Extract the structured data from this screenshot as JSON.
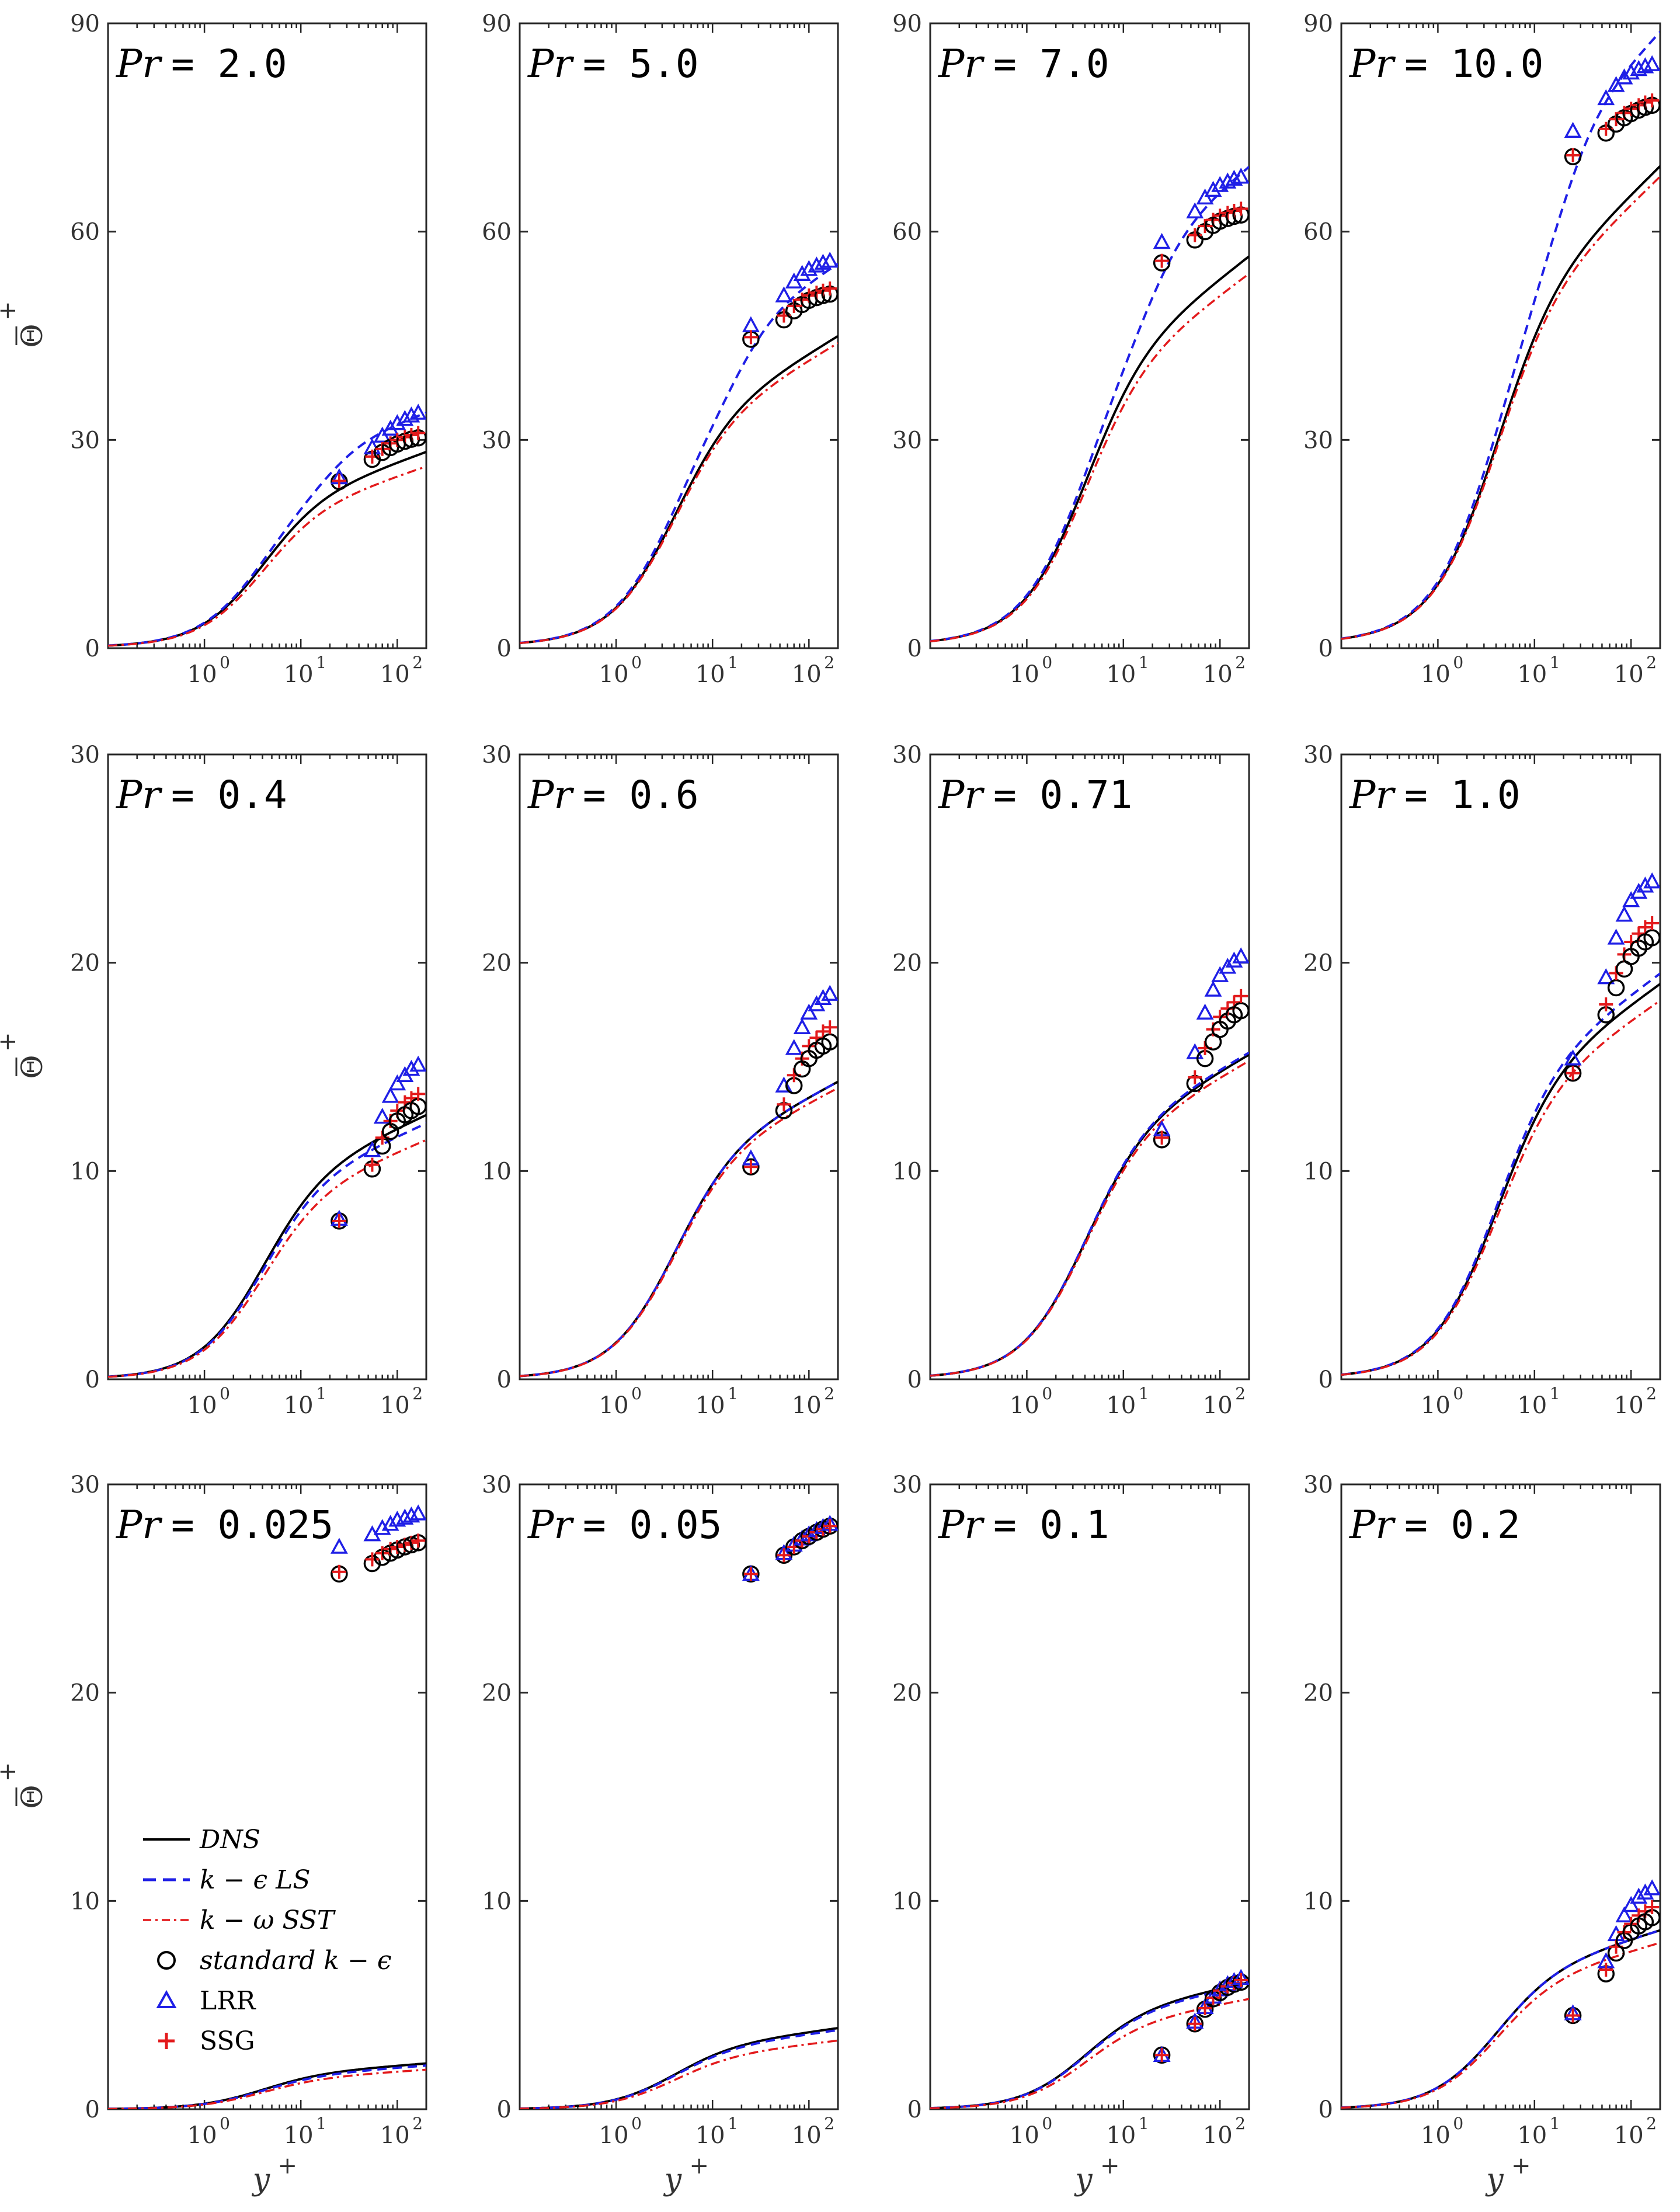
{
  "chart_data": {
    "type": "line",
    "layout": "3x4 grid of subplots",
    "x_scale": "log",
    "xlabel": "y",
    "xlabel_superscript": "+",
    "ylabel": "Θ",
    "ylabel_superscript": "+",
    "xlim": [
      0.1,
      200
    ],
    "x_ticks": [
      {
        "base": "10",
        "exp": "0",
        "value": 1
      },
      {
        "base": "10",
        "exp": "1",
        "value": 10
      },
      {
        "base": "10",
        "exp": "2",
        "value": 100
      }
    ],
    "legend": [
      {
        "label": "DNS",
        "style": "solid",
        "color": "#000000"
      },
      {
        "label": "k − ϵ LS",
        "style": "dashed",
        "color": "#1f1fe6"
      },
      {
        "label": "k − ω SST",
        "style": "dashdot",
        "color": "#e31a1c"
      },
      {
        "label": "standard k − ϵ",
        "style": "circle",
        "color": "#000000"
      },
      {
        "label": "LRR",
        "style": "triangle",
        "color": "#1f1fe6"
      },
      {
        "label": "SSG",
        "style": "plus",
        "color": "#e31a1c"
      }
    ],
    "panels": [
      {
        "title_var": "Pr",
        "title_val": "= 2.0",
        "Pr": 2.0,
        "ylim": [
          0,
          90
        ],
        "yticks": [
          0,
          30,
          60,
          90
        ],
        "dns_end": 28.3,
        "ls_end": 34.0,
        "sst_end": 26.2,
        "wall_std": [
          24.0,
          27.2,
          28.2,
          28.9,
          29.4,
          29.8,
          30.1,
          30.3
        ],
        "wall_lrr": [
          24.6,
          28.9,
          30.6,
          31.6,
          32.4,
          33.0,
          33.5,
          33.9
        ],
        "wall_ssg": [
          24.1,
          27.6,
          28.7,
          29.5,
          30.0,
          30.4,
          30.7,
          31.0
        ]
      },
      {
        "title_var": "Pr",
        "title_val": "= 5.0",
        "Pr": 5.0,
        "ylim": [
          0,
          90
        ],
        "yticks": [
          0,
          30,
          60,
          90
        ],
        "dns_end": 45.0,
        "ls_end": 55.5,
        "sst_end": 44.0,
        "wall_std": [
          44.5,
          47.3,
          48.6,
          49.5,
          50.1,
          50.5,
          50.8,
          51.0
        ],
        "wall_lrr": [
          46.5,
          50.8,
          52.8,
          53.9,
          54.6,
          55.1,
          55.5,
          55.8
        ],
        "wall_ssg": [
          44.8,
          47.9,
          49.3,
          50.2,
          50.8,
          51.2,
          51.5,
          51.8
        ]
      },
      {
        "title_var": "Pr",
        "title_val": "= 7.0",
        "Pr": 7.0,
        "ylim": [
          0,
          90
        ],
        "yticks": [
          0,
          30,
          60,
          90
        ],
        "dns_end": 56.5,
        "ls_end": 69.5,
        "sst_end": 54.0,
        "wall_std": [
          55.5,
          58.8,
          60.0,
          60.9,
          61.5,
          61.9,
          62.2,
          62.4
        ],
        "wall_lrr": [
          58.5,
          62.9,
          64.9,
          66.0,
          66.7,
          67.2,
          67.6,
          67.9
        ],
        "wall_ssg": [
          55.8,
          59.5,
          60.8,
          61.7,
          62.3,
          62.7,
          63.0,
          63.3
        ]
      },
      {
        "title_var": "Pr",
        "title_val": "= 10.0",
        "Pr": 10.0,
        "ylim": [
          0,
          90
        ],
        "yticks": [
          0,
          30,
          60,
          90
        ],
        "dns_end": 69.5,
        "ls_end": 89.0,
        "sst_end": 68.0,
        "wall_std": [
          70.8,
          74.2,
          75.5,
          76.4,
          77.0,
          77.5,
          77.9,
          78.2
        ],
        "wall_lrr": [
          74.5,
          79.2,
          81.1,
          82.2,
          82.9,
          83.4,
          83.8,
          84.1
        ],
        "wall_ssg": [
          71.0,
          74.8,
          76.2,
          77.1,
          77.7,
          78.2,
          78.6,
          78.9
        ]
      },
      {
        "title_var": "Pr",
        "title_val": "= 0.4",
        "Pr": 0.4,
        "ylim": [
          0,
          30
        ],
        "yticks": [
          0,
          10,
          20,
          30
        ],
        "dns_end": 12.7,
        "ls_end": 12.3,
        "sst_end": 11.5,
        "wall_std": [
          7.6,
          10.1,
          11.2,
          11.9,
          12.4,
          12.7,
          12.9,
          13.1
        ],
        "wall_lrr": [
          7.7,
          11.0,
          12.6,
          13.6,
          14.2,
          14.6,
          14.9,
          15.1
        ],
        "wall_ssg": [
          7.6,
          10.3,
          11.6,
          12.4,
          12.9,
          13.3,
          13.5,
          13.7
        ]
      },
      {
        "title_var": "Pr",
        "title_val": "= 0.6",
        "Pr": 0.6,
        "ylim": [
          0,
          30
        ],
        "yticks": [
          0,
          10,
          20,
          30
        ],
        "dns_end": 14.3,
        "ls_end": 14.3,
        "sst_end": 14.0,
        "wall_std": [
          10.2,
          12.9,
          14.1,
          14.9,
          15.4,
          15.8,
          16.0,
          16.2
        ],
        "wall_lrr": [
          10.6,
          14.1,
          15.9,
          16.9,
          17.6,
          18.0,
          18.3,
          18.5
        ],
        "wall_ssg": [
          10.2,
          13.2,
          14.6,
          15.4,
          16.0,
          16.4,
          16.7,
          16.9
        ]
      },
      {
        "title_var": "Pr",
        "title_val": "= 0.71",
        "Pr": 0.71,
        "ylim": [
          0,
          30
        ],
        "yticks": [
          0,
          10,
          20,
          30
        ],
        "dns_end": 15.6,
        "ls_end": 15.7,
        "sst_end": 15.3,
        "wall_std": [
          11.5,
          14.2,
          15.4,
          16.2,
          16.8,
          17.2,
          17.5,
          17.7
        ],
        "wall_lrr": [
          12.0,
          15.7,
          17.6,
          18.7,
          19.4,
          19.8,
          20.1,
          20.3
        ],
        "wall_ssg": [
          11.6,
          14.5,
          15.9,
          16.8,
          17.4,
          17.8,
          18.1,
          18.4
        ]
      },
      {
        "title_var": "Pr",
        "title_val": "= 1.0",
        "Pr": 1.0,
        "ylim": [
          0,
          30
        ],
        "yticks": [
          0,
          10,
          20,
          30
        ],
        "dns_end": 19.0,
        "ls_end": 19.5,
        "sst_end": 18.2,
        "wall_std": [
          14.7,
          17.5,
          18.8,
          19.7,
          20.3,
          20.7,
          21.0,
          21.2
        ],
        "wall_lrr": [
          15.4,
          19.3,
          21.2,
          22.3,
          23.0,
          23.4,
          23.7,
          23.9
        ],
        "wall_ssg": [
          14.7,
          18.0,
          19.5,
          20.4,
          21.0,
          21.4,
          21.7,
          21.9
        ]
      },
      {
        "title_var": "Pr",
        "title_val": "= 0.025",
        "Pr": 0.025,
        "ylim": [
          0,
          30
        ],
        "yticks": [
          0,
          10,
          20,
          30
        ],
        "dns_end": 2.2,
        "ls_end": 2.1,
        "sst_end": 1.9,
        "wall_std": [
          25.7,
          26.2,
          26.5,
          26.7,
          26.85,
          27.0,
          27.1,
          27.2
        ],
        "wall_lrr": [
          27.0,
          27.6,
          27.9,
          28.1,
          28.3,
          28.4,
          28.5,
          28.6
        ],
        "wall_ssg": [
          25.8,
          26.4,
          26.7,
          26.9,
          27.0,
          27.1,
          27.2,
          27.3
        ]
      },
      {
        "title_var": "Pr",
        "title_val": "= 0.05",
        "Pr": 0.05,
        "ylim": [
          0,
          30
        ],
        "yticks": [
          0,
          10,
          20,
          30
        ],
        "dns_end": 3.9,
        "ls_end": 3.8,
        "sst_end": 3.3,
        "wall_std": [
          25.7,
          26.6,
          27.0,
          27.3,
          27.5,
          27.7,
          27.85,
          28.0
        ],
        "wall_lrr": [
          25.7,
          26.7,
          27.1,
          27.4,
          27.6,
          27.8,
          27.95,
          28.1
        ],
        "wall_ssg": [
          25.7,
          26.6,
          27.0,
          27.3,
          27.5,
          27.7,
          27.85,
          28.0
        ]
      },
      {
        "title_var": "Pr",
        "title_val": "= 0.1",
        "Pr": 0.1,
        "ylim": [
          0,
          30
        ],
        "yticks": [
          0,
          10,
          20,
          30
        ],
        "dns_end": 6.1,
        "ls_end": 6.0,
        "sst_end": 5.3,
        "wall_std": [
          2.6,
          4.1,
          4.8,
          5.3,
          5.6,
          5.85,
          6.0,
          6.1
        ],
        "wall_lrr": [
          2.6,
          4.2,
          4.9,
          5.4,
          5.75,
          6.0,
          6.15,
          6.3
        ],
        "wall_ssg": [
          2.6,
          4.1,
          4.85,
          5.35,
          5.7,
          5.9,
          6.05,
          6.2
        ]
      },
      {
        "title_var": "Pr",
        "title_val": "= 0.2",
        "Pr": 0.2,
        "ylim": [
          0,
          30
        ],
        "yticks": [
          0,
          10,
          20,
          30
        ],
        "dns_end": 8.6,
        "ls_end": 8.6,
        "sst_end": 8.0,
        "wall_std": [
          4.5,
          6.5,
          7.5,
          8.1,
          8.5,
          8.8,
          9.0,
          9.2
        ],
        "wall_lrr": [
          4.6,
          7.1,
          8.4,
          9.3,
          9.8,
          10.2,
          10.4,
          10.6
        ],
        "wall_ssg": [
          4.5,
          6.7,
          7.8,
          8.5,
          8.9,
          9.3,
          9.5,
          9.7
        ]
      }
    ],
    "wall_x": [
      25,
      55,
      70,
      85,
      100,
      120,
      140,
      165
    ]
  }
}
